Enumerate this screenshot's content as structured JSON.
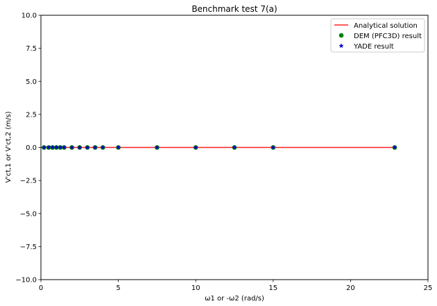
{
  "chart_data": {
    "type": "scatter",
    "title": "Benchmark test 7(a)",
    "xlabel": "ω1 or -ω2 (rad/s)",
    "ylabel": "V'ct,1 or V'ct,2 (m/s)",
    "xlim": [
      0,
      25
    ],
    "ylim": [
      -10,
      10
    ],
    "xticks": [
      0,
      5,
      10,
      15,
      20,
      25
    ],
    "yticks": [
      -10.0,
      -7.5,
      -5.0,
      -2.5,
      0.0,
      2.5,
      5.0,
      7.5,
      10.0
    ],
    "xtick_labels": [
      "0",
      "5",
      "10",
      "15",
      "20",
      "25"
    ],
    "ytick_labels": [
      "−10.0",
      "−7.5",
      "−5.0",
      "−2.5",
      "0.0",
      "2.5",
      "5.0",
      "7.5",
      "10.0"
    ],
    "grid": false,
    "legend_position": "top-right",
    "series": [
      {
        "name": "Analytical solution",
        "kind": "line",
        "color": "#ff2020",
        "x": [
          0,
          22.85
        ],
        "y": [
          0,
          0
        ]
      },
      {
        "name": "DEM (PFC3D) result",
        "kind": "circle",
        "color": "#008000",
        "x": [
          0.2,
          0.5,
          0.75,
          1.0,
          1.25,
          1.5,
          2.0,
          2.5,
          3.0,
          3.5,
          4.0,
          5.0,
          7.5,
          10.0,
          12.5,
          15.0,
          22.85
        ],
        "y": [
          0,
          0,
          0,
          0,
          0,
          0,
          0,
          0,
          0,
          0,
          0,
          0,
          0,
          0,
          0,
          0,
          0
        ]
      },
      {
        "name": "YADE result",
        "kind": "star",
        "color": "#0000cc",
        "x": [
          0.2,
          0.5,
          0.75,
          1.0,
          1.25,
          1.5,
          2.0,
          2.5,
          3.0,
          3.5,
          4.0,
          5.0,
          7.5,
          10.0,
          12.5,
          15.0,
          22.85
        ],
        "y": [
          0,
          0,
          0,
          0,
          0,
          0,
          0,
          0,
          0,
          0,
          0,
          0,
          0,
          0,
          0,
          0,
          0
        ]
      }
    ]
  }
}
